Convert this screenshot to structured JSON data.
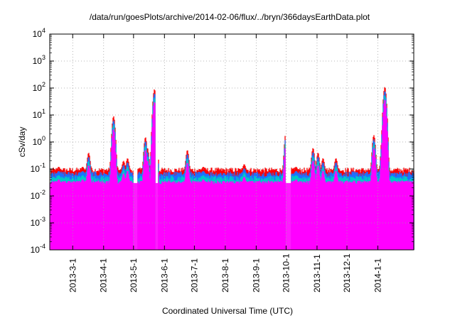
{
  "chart_data": {
    "type": "area",
    "title": "/data/run/goesPlots/archive/2014-02-06/flux/../bryn/366daysEarthData.plot",
    "xlabel": "Coordinated Universal Time (UTC)",
    "ylabel": "cSv/day",
    "yscale": "log",
    "ylim": [
      0.0001,
      10000
    ],
    "xlim": [
      "2013-02-06",
      "2014-02-06"
    ],
    "grid": true,
    "legend": "none",
    "x_ticks": [
      "2013-3-1",
      "2013-4-1",
      "2013-5-1",
      "2013-6-1",
      "2013-7-1",
      "2013-8-1",
      "2013-9-1",
      "2013-10-1",
      "2013-11-1",
      "2013-12-1",
      "2014-1-1"
    ],
    "y_ticks": [
      {
        "base": "10",
        "exp": "-4"
      },
      {
        "base": "10",
        "exp": "-3"
      },
      {
        "base": "10",
        "exp": "-2"
      },
      {
        "base": "10",
        "exp": "-1"
      },
      {
        "base": "10",
        "exp": "0"
      },
      {
        "base": "10",
        "exp": "1"
      },
      {
        "base": "10",
        "exp": "2"
      },
      {
        "base": "10",
        "exp": "3"
      },
      {
        "base": "10",
        "exp": "4"
      }
    ],
    "series": [
      {
        "color": "#ff0000",
        "baseline": 0.09
      },
      {
        "color": "#1e6fff",
        "baseline": 0.065
      },
      {
        "color": "#00c8c8",
        "baseline": 0.045
      },
      {
        "color": "#ff00ff",
        "baseline": 0.03
      }
    ],
    "events": [
      {
        "date": "2013-02-15",
        "peak": 0.12
      },
      {
        "date": "2013-03-11",
        "peak": 0.12
      },
      {
        "date": "2013-03-17",
        "peak": 0.4
      },
      {
        "date": "2013-04-11",
        "peak": 9
      },
      {
        "date": "2013-04-21",
        "peak": 0.2
      },
      {
        "date": "2013-04-25",
        "peak": 0.25
      },
      {
        "date": "2013-05-13",
        "peak": 1.5
      },
      {
        "date": "2013-05-15",
        "peak": 0.6
      },
      {
        "date": "2013-05-22",
        "peak": 90
      },
      {
        "date": "2013-06-24",
        "peak": 0.5
      },
      {
        "date": "2013-07-10",
        "peak": 0.12
      },
      {
        "date": "2013-08-20",
        "peak": 0.15
      },
      {
        "date": "2013-10-01",
        "peak": 2.5
      },
      {
        "date": "2013-10-11",
        "peak": 0.12
      },
      {
        "date": "2013-10-28",
        "peak": 0.6
      },
      {
        "date": "2013-11-02",
        "peak": 0.4
      },
      {
        "date": "2013-11-07",
        "peak": 0.25
      },
      {
        "date": "2013-11-20",
        "peak": 0.25
      },
      {
        "date": "2013-12-28",
        "peak": 1.8
      },
      {
        "date": "2014-01-06",
        "peak": 2.5
      },
      {
        "date": "2014-01-08",
        "peak": 110
      }
    ],
    "gaps": [
      [
        "2013-02-06",
        "2013-02-07"
      ],
      [
        "2013-05-01",
        "2013-05-05"
      ],
      [
        "2013-05-23",
        "2013-05-26"
      ],
      [
        "2013-09-30",
        "2013-10-06"
      ]
    ]
  }
}
